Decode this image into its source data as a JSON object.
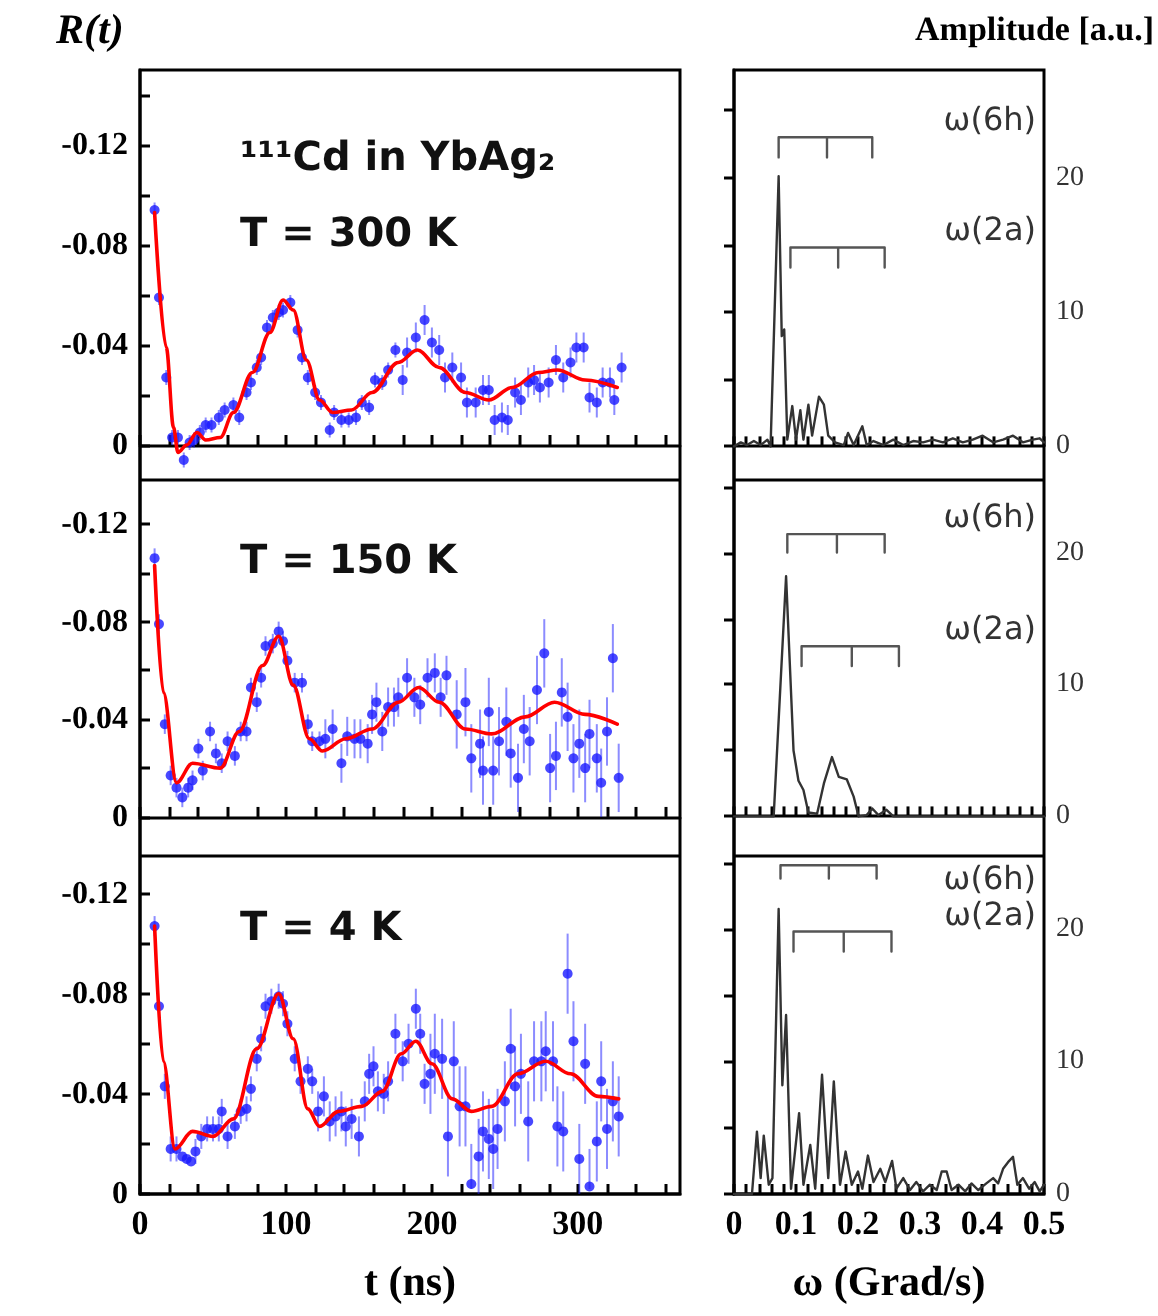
{
  "chart_data": [
    {
      "type": "scatter",
      "ylabel": "R(t)",
      "annotations": [
        "¹¹¹Cd in YbAg₂",
        "T = 300 K"
      ],
      "tick_labels": "y",
      "xlim": [
        0,
        370
      ],
      "xticks": [
        0,
        {
          "value": 20,
          "label": null
        },
        {
          "value": 40,
          "label": null
        },
        {
          "value": 60,
          "label": null
        },
        {
          "value": 80,
          "label": null
        },
        100,
        {
          "value": 120,
          "label": null
        },
        {
          "value": 140,
          "label": null
        },
        {
          "value": 160,
          "label": null
        },
        {
          "value": 180,
          "label": null
        },
        200,
        {
          "value": 220,
          "label": null
        },
        {
          "value": 240,
          "label": null
        },
        {
          "value": 260,
          "label": null
        },
        {
          "value": 280,
          "label": null
        },
        300,
        {
          "value": 320,
          "label": null
        },
        {
          "value": 340,
          "label": null
        },
        {
          "value": 360,
          "label": null
        }
      ],
      "ylim": [
        0.014,
        -0.15
      ],
      "yticks": [
        {
          "value": -0.14,
          "label": null
        },
        -0.12,
        {
          "value": -0.1,
          "label": null
        },
        -0.08,
        {
          "value": -0.06,
          "label": null
        },
        -0.04,
        {
          "value": -0.02,
          "label": null
        },
        0
      ],
      "series": [
        {
          "type": "scatter",
          "marker": "circle",
          "color": "#1a1aff",
          "x": [
            10,
            13,
            18,
            22,
            26,
            30,
            34,
            37,
            41,
            45,
            49,
            54,
            58,
            64,
            68,
            73,
            76,
            80,
            83,
            87,
            91,
            95,
            98,
            103,
            108,
            111,
            115,
            120,
            124,
            130,
            133,
            138,
            143,
            148,
            152,
            157,
            161,
            166,
            170,
            175,
            180,
            183,
            189,
            195,
            200,
            205,
            209,
            214,
            220,
            224,
            230,
            235,
            239,
            243,
            248,
            252,
            257,
            261,
            266,
            270,
            274,
            280,
            285,
            290,
            295,
            299,
            304,
            308,
            313,
            317,
            322,
            325,
            330
          ],
          "values": [
            -0.094,
            -0.059,
            -0.027,
            -0.003,
            -0.003,
            0.006,
            -0.001,
            -0.002,
            -0.005,
            -0.008,
            -0.008,
            -0.011,
            -0.014,
            -0.016,
            -0.011,
            -0.021,
            -0.025,
            -0.031,
            -0.035,
            -0.047,
            -0.051,
            -0.053,
            -0.054,
            -0.057,
            -0.046,
            -0.035,
            -0.027,
            -0.021,
            -0.017,
            -0.006,
            -0.013,
            -0.01,
            -0.01,
            -0.011,
            -0.017,
            -0.015,
            -0.026,
            -0.025,
            -0.03,
            -0.038,
            -0.026,
            -0.037,
            -0.043,
            -0.05,
            -0.041,
            -0.038,
            -0.027,
            -0.031,
            -0.027,
            -0.017,
            -0.017,
            -0.022,
            -0.022,
            -0.01,
            -0.011,
            -0.01,
            -0.021,
            -0.018,
            -0.025,
            -0.026,
            -0.023,
            -0.025,
            -0.034,
            -0.027,
            -0.033,
            -0.039,
            -0.039,
            -0.019,
            -0.017,
            -0.025,
            -0.025,
            -0.018,
            -0.031
          ],
          "errors": [
            0.003,
            0.003,
            0.003,
            0.003,
            0.003,
            0.003,
            0.003,
            0.003,
            0.003,
            0.003,
            0.003,
            0.003,
            0.003,
            0.003,
            0.003,
            0.003,
            0.003,
            0.003,
            0.003,
            0.003,
            0.003,
            0.003,
            0.003,
            0.003,
            0.003,
            0.003,
            0.003,
            0.003,
            0.003,
            0.003,
            0.003,
            0.003,
            0.003,
            0.003,
            0.003,
            0.003,
            0.003,
            0.003,
            0.003,
            0.003,
            0.006,
            0.006,
            0.006,
            0.006,
            0.006,
            0.006,
            0.006,
            0.006,
            0.006,
            0.006,
            0.006,
            0.006,
            0.006,
            0.006,
            0.006,
            0.006,
            0.006,
            0.006,
            0.006,
            0.006,
            0.006,
            0.006,
            0.006,
            0.006,
            0.006,
            0.006,
            0.006,
            0.006,
            0.006,
            0.006,
            0.006,
            0.006,
            0.006
          ]
        },
        {
          "type": "line",
          "marker": "none",
          "color": "#ff0000",
          "x": [
            10,
            18,
            23,
            26,
            32,
            39,
            45,
            55,
            64,
            77,
            89,
            98,
            105,
            114,
            123,
            132,
            145,
            159,
            177,
            190,
            205,
            223,
            239,
            255,
            273,
            286,
            305,
            327
          ],
          "values": [
            -0.093,
            -0.039,
            -0.007,
            0.003,
            0,
            -0.005,
            -0.002,
            -0.003,
            -0.013,
            -0.029,
            -0.045,
            -0.058,
            -0.054,
            -0.034,
            -0.018,
            -0.013,
            -0.014,
            -0.021,
            -0.033,
            -0.038,
            -0.031,
            -0.021,
            -0.018,
            -0.023,
            -0.029,
            -0.03,
            -0.026,
            -0.023
          ]
        }
      ]
    },
    {
      "type": "line",
      "y2label": "Amplitude [a.u.]",
      "tick_labels": "y",
      "xlim": [
        0,
        0.5
      ],
      "xticks": [
        0,
        {
          "value": 0.02,
          "label": null
        },
        {
          "value": 0.04,
          "label": null
        },
        {
          "value": 0.06,
          "label": null
        },
        {
          "value": 0.08,
          "label": null
        },
        0.1,
        {
          "value": 0.12,
          "label": null
        },
        {
          "value": 0.14,
          "label": null
        },
        {
          "value": 0.16,
          "label": null
        },
        {
          "value": 0.18,
          "label": null
        },
        0.2,
        {
          "value": 0.22,
          "label": null
        },
        {
          "value": 0.24,
          "label": null
        },
        {
          "value": 0.26,
          "label": null
        },
        {
          "value": 0.28,
          "label": null
        },
        0.3,
        {
          "value": 0.32,
          "label": null
        },
        {
          "value": 0.34,
          "label": null
        },
        {
          "value": 0.36,
          "label": null
        },
        {
          "value": 0.38,
          "label": null
        },
        0.4,
        {
          "value": 0.42,
          "label": null
        },
        {
          "value": 0.44,
          "label": null
        },
        {
          "value": 0.46,
          "label": null
        },
        {
          "value": 0.48,
          "label": null
        },
        0.5
      ],
      "y2lim": [
        -2.5,
        28
      ],
      "y2ticks": [
        0,
        {
          "value": 5,
          "label": null
        },
        10,
        {
          "value": 15,
          "label": null
        },
        20,
        {
          "value": 25,
          "label": null
        }
      ],
      "series": [
        {
          "axis": "y2",
          "color": "#333333",
          "x": [
            0,
            0.011,
            0.021,
            0.032,
            0.043,
            0.054,
            0.059,
            0.072,
            0.077,
            0.081,
            0.086,
            0.094,
            0.1,
            0.107,
            0.112,
            0.12,
            0.126,
            0.137,
            0.145,
            0.152,
            0.163,
            0.177,
            0.184,
            0.193,
            0.207,
            0.214,
            0.225,
            0.241,
            0.257,
            0.273,
            0.289,
            0.305,
            0.321,
            0.337,
            0.353,
            0.369,
            0.385,
            0.401,
            0.418,
            0.434,
            0.45,
            0.466,
            0.482,
            0.493,
            0.5
          ],
          "values": [
            0,
            0.3,
            0.1,
            0.4,
            0.1,
            0.5,
            0,
            20.1,
            8.2,
            8.7,
            0.5,
            3,
            0.5,
            2.7,
            0.5,
            3.1,
            0.8,
            3.7,
            3.1,
            0.8,
            0.3,
            0.1,
            1,
            0.1,
            1.5,
            0.1,
            0.4,
            0.1,
            0.5,
            0.1,
            0.4,
            0.3,
            0.5,
            0.3,
            0.6,
            0.3,
            0.5,
            0.8,
            0.3,
            0.5,
            0.8,
            0.3,
            0.5,
            0.6,
            0.3
          ]
        },
        {
          "axis": "y2",
          "name": "ω(6h)",
          "color": "#555555",
          "x": [
            0.072,
            0.072,
            0.15,
            0.15,
            0.15,
            0.223,
            0.223
          ],
          "values": [
            21.5,
            23,
            23,
            21.5,
            23,
            23,
            21.5
          ]
        },
        {
          "axis": "y2",
          "name": "ω(2a)",
          "color": "#555555",
          "x": [
            0.091,
            0.091,
            0.168,
            0.168,
            0.168,
            0.243,
            0.243
          ],
          "values": [
            13.3,
            14.8,
            14.8,
            13.3,
            14.8,
            14.8,
            13.3
          ]
        }
      ]
    },
    {
      "type": "scatter",
      "annotations": [
        "T = 150 K"
      ],
      "tick_labels": "y",
      "xlim": [
        0,
        370
      ],
      "xticks": [
        0,
        {
          "value": 20,
          "label": null
        },
        {
          "value": 40,
          "label": null
        },
        {
          "value": 60,
          "label": null
        },
        {
          "value": 80,
          "label": null
        },
        100,
        {
          "value": 120,
          "label": null
        },
        {
          "value": 140,
          "label": null
        },
        {
          "value": 160,
          "label": null
        },
        {
          "value": 180,
          "label": null
        },
        200,
        {
          "value": 220,
          "label": null
        },
        {
          "value": 240,
          "label": null
        },
        {
          "value": 260,
          "label": null
        },
        {
          "value": 280,
          "label": null
        },
        300,
        {
          "value": 320,
          "label": null
        },
        {
          "value": 340,
          "label": null
        },
        {
          "value": 360,
          "label": null
        }
      ],
      "ylim": [
        0.016,
        -0.138
      ],
      "yticks": [
        -0.12,
        {
          "value": -0.1,
          "label": null
        },
        -0.08,
        {
          "value": -0.06,
          "label": null
        },
        -0.04,
        {
          "value": -0.02,
          "label": null
        },
        0
      ],
      "series": [
        {
          "type": "scatter",
          "marker": "circle",
          "color": "#1a1aff",
          "x": [
            10,
            13,
            17,
            21,
            25,
            29,
            33,
            36,
            40,
            43,
            48,
            52,
            56,
            60,
            65,
            69,
            73,
            76,
            80,
            83,
            86,
            91,
            95,
            98,
            101,
            106,
            111,
            115,
            118,
            123,
            127,
            132,
            138,
            142,
            147,
            151,
            156,
            159,
            162,
            166,
            170,
            174,
            177,
            183,
            188,
            192,
            197,
            202,
            206,
            210,
            217,
            223,
            227,
            233,
            235,
            239,
            242,
            246,
            251,
            254,
            259,
            263,
            267,
            272,
            277,
            281,
            285,
            289,
            293,
            297,
            301,
            305,
            308,
            313,
            316,
            320,
            324,
            328
          ],
          "values": [
            -0.106,
            -0.079,
            -0.038,
            -0.017,
            -0.012,
            -0.008,
            -0.012,
            -0.015,
            -0.028,
            -0.019,
            -0.035,
            -0.026,
            -0.022,
            -0.031,
            -0.025,
            -0.035,
            -0.035,
            -0.053,
            -0.047,
            -0.057,
            -0.07,
            -0.071,
            -0.076,
            -0.072,
            -0.064,
            -0.055,
            -0.055,
            -0.038,
            -0.031,
            -0.031,
            -0.032,
            -0.036,
            -0.022,
            -0.033,
            -0.032,
            -0.032,
            -0.03,
            -0.042,
            -0.047,
            -0.035,
            -0.045,
            -0.045,
            -0.049,
            -0.057,
            -0.049,
            -0.046,
            -0.057,
            -0.059,
            -0.049,
            -0.058,
            -0.042,
            -0.047,
            -0.024,
            -0.03,
            -0.019,
            -0.043,
            -0.019,
            -0.031,
            -0.039,
            -0.026,
            -0.016,
            -0.036,
            -0.031,
            -0.052,
            -0.067,
            -0.02,
            -0.025,
            -0.051,
            -0.041,
            -0.024,
            -0.03,
            -0.02,
            -0.034,
            -0.024,
            -0.014,
            -0.035,
            -0.065,
            -0.016
          ],
          "errors": [
            0.004,
            0.004,
            0.004,
            0.004,
            0.004,
            0.004,
            0.004,
            0.004,
            0.004,
            0.004,
            0.004,
            0.004,
            0.004,
            0.004,
            0.004,
            0.004,
            0.004,
            0.004,
            0.004,
            0.004,
            0.004,
            0.004,
            0.004,
            0.004,
            0.004,
            0.004,
            0.004,
            0.004,
            0.004,
            0.004,
            0.008,
            0.008,
            0.008,
            0.008,
            0.008,
            0.008,
            0.008,
            0.008,
            0.008,
            0.008,
            0.008,
            0.008,
            0.008,
            0.008,
            0.008,
            0.008,
            0.008,
            0.008,
            0.008,
            0.008,
            0.014,
            0.014,
            0.014,
            0.014,
            0.014,
            0.014,
            0.014,
            0.014,
            0.014,
            0.014,
            0.014,
            0.014,
            0.014,
            0.014,
            0.014,
            0.014,
            0.014,
            0.014,
            0.014,
            0.014,
            0.014,
            0.014,
            0.014,
            0.014,
            0.014,
            0.014,
            0.014,
            0.014
          ]
        },
        {
          "type": "line",
          "marker": "none",
          "color": "#ff0000",
          "x": [
            10,
            16,
            25,
            36,
            55,
            68,
            84,
            95,
            105,
            116,
            125,
            141,
            159,
            177,
            191,
            205,
            223,
            241,
            264,
            284,
            305,
            327
          ],
          "values": [
            -0.103,
            -0.051,
            -0.014,
            -0.022,
            -0.02,
            -0.035,
            -0.062,
            -0.074,
            -0.054,
            -0.032,
            -0.027,
            -0.032,
            -0.036,
            -0.047,
            -0.053,
            -0.047,
            -0.036,
            -0.034,
            -0.041,
            -0.047,
            -0.042,
            -0.038
          ]
        }
      ]
    },
    {
      "type": "line",
      "tick_labels": "y",
      "xlim": [
        0,
        0.5
      ],
      "xticks": [
        0,
        {
          "value": 0.02,
          "label": null
        },
        {
          "value": 0.04,
          "label": null
        },
        {
          "value": 0.06,
          "label": null
        },
        {
          "value": 0.08,
          "label": null
        },
        0.1,
        {
          "value": 0.12,
          "label": null
        },
        {
          "value": 0.14,
          "label": null
        },
        {
          "value": 0.16,
          "label": null
        },
        {
          "value": 0.18,
          "label": null
        },
        0.2,
        {
          "value": 0.22,
          "label": null
        },
        {
          "value": 0.24,
          "label": null
        },
        {
          "value": 0.26,
          "label": null
        },
        {
          "value": 0.28,
          "label": null
        },
        0.3,
        {
          "value": 0.32,
          "label": null
        },
        {
          "value": 0.34,
          "label": null
        },
        {
          "value": 0.36,
          "label": null
        },
        {
          "value": 0.38,
          "label": null
        },
        0.4,
        {
          "value": 0.42,
          "label": null
        },
        {
          "value": 0.44,
          "label": null
        },
        {
          "value": 0.46,
          "label": null
        },
        {
          "value": 0.48,
          "label": null
        },
        0.5
      ],
      "y2lim": [
        -3,
        25.5
      ],
      "y2ticks": [
        0,
        {
          "value": 5,
          "label": null
        },
        10,
        {
          "value": 15,
          "label": null
        },
        20,
        {
          "value": 25,
          "label": null
        }
      ],
      "series": [
        {
          "axis": "y2",
          "color": "#333333",
          "x": [
            0,
            0.064,
            0.084,
            0.096,
            0.104,
            0.112,
            0.12,
            0.134,
            0.145,
            0.158,
            0.169,
            0.182,
            0.193,
            0.201,
            0.214,
            0.223,
            0.233,
            0.246,
            0.257,
            0.5
          ],
          "values": [
            0,
            0,
            18.2,
            5,
            2.7,
            2,
            0.3,
            0.2,
            2.5,
            4.5,
            3,
            2.8,
            1.5,
            0,
            0.1,
            0.6,
            0.1,
            0.5,
            0,
            0
          ]
        },
        {
          "axis": "y2",
          "name": "ω(6h)",
          "color": "#555555",
          "x": [
            0.086,
            0.086,
            0.166,
            0.166,
            0.166,
            0.243,
            0.243
          ],
          "values": [
            20,
            21.4,
            21.4,
            20,
            21.4,
            21.4,
            20
          ]
        },
        {
          "axis": "y2",
          "name": "ω(2a)",
          "color": "#555555",
          "x": [
            0.109,
            0.109,
            0.19,
            0.19,
            0.19,
            0.266,
            0.266
          ],
          "values": [
            11.4,
            12.9,
            12.9,
            11.4,
            12.9,
            12.9,
            11.4
          ]
        }
      ]
    },
    {
      "type": "scatter",
      "xlabel": "t (ns)",
      "annotations": [
        "T = 4 K"
      ],
      "xlim": [
        0,
        370
      ],
      "xticks": [
        0,
        {
          "value": 20,
          "label": null
        },
        {
          "value": 40,
          "label": null
        },
        {
          "value": 60,
          "label": null
        },
        {
          "value": 80,
          "label": null
        },
        100,
        {
          "value": 120,
          "label": null
        },
        {
          "value": 140,
          "label": null
        },
        {
          "value": 160,
          "label": null
        },
        {
          "value": 180,
          "label": null
        },
        200,
        {
          "value": 220,
          "label": null
        },
        {
          "value": 240,
          "label": null
        },
        {
          "value": 260,
          "label": null
        },
        {
          "value": 280,
          "label": null
        },
        300,
        {
          "value": 320,
          "label": null
        },
        {
          "value": 340,
          "label": null
        },
        {
          "value": 360,
          "label": null
        }
      ],
      "ylim": [
        0,
        -0.135
      ],
      "yticks": [
        -0.12,
        {
          "value": -0.1,
          "label": null
        },
        -0.08,
        {
          "value": -0.06,
          "label": null
        },
        -0.04,
        {
          "value": -0.02,
          "label": null
        },
        0
      ],
      "series": [
        {
          "type": "scatter",
          "marker": "circle",
          "color": "#1a1aff",
          "x": [
            10,
            13,
            17,
            21,
            25,
            29,
            32,
            35,
            38,
            42,
            46,
            50,
            54,
            56,
            60,
            65,
            69,
            73,
            76,
            80,
            83,
            86,
            90,
            95,
            98,
            101,
            106,
            110,
            115,
            118,
            122,
            126,
            130,
            134,
            138,
            141,
            145,
            150,
            154,
            157,
            160,
            163,
            167,
            170,
            175,
            180,
            184,
            189,
            192,
            195,
            199,
            202,
            207,
            211,
            215,
            219,
            223,
            227,
            232,
            235,
            239,
            242,
            245,
            250,
            254,
            257,
            261,
            266,
            270,
            275,
            278,
            283,
            286,
            290,
            293,
            297,
            301,
            305,
            308,
            313,
            316,
            320,
            324,
            328
          ],
          "values": [
            -0.107,
            -0.075,
            -0.043,
            -0.018,
            -0.018,
            -0.015,
            -0.014,
            -0.013,
            -0.017,
            -0.023,
            -0.026,
            -0.026,
            -0.026,
            -0.033,
            -0.023,
            -0.027,
            -0.033,
            -0.034,
            -0.042,
            -0.054,
            -0.062,
            -0.075,
            -0.077,
            -0.079,
            -0.076,
            -0.068,
            -0.054,
            -0.045,
            -0.05,
            -0.045,
            -0.033,
            -0.039,
            -0.029,
            -0.031,
            -0.033,
            -0.027,
            -0.03,
            -0.023,
            -0.037,
            -0.048,
            -0.051,
            -0.041,
            -0.04,
            -0.045,
            -0.064,
            -0.053,
            -0.06,
            -0.074,
            -0.064,
            -0.044,
            -0.048,
            -0.056,
            -0.054,
            -0.023,
            -0.053,
            -0.035,
            -0.035,
            -0.004,
            -0.015,
            -0.025,
            -0.022,
            -0.018,
            -0.026,
            -0.037,
            -0.058,
            -0.043,
            -0.048,
            -0.029,
            -0.053,
            -0.053,
            -0.057,
            -0.053,
            -0.027,
            -0.025,
            -0.088,
            -0.061,
            -0.014,
            -0.052,
            -0.003,
            -0.021,
            -0.045,
            -0.026,
            -0.037,
            -0.031
          ],
          "errors": [
            0.004,
            null,
            0.005,
            0.005,
            0.005,
            null,
            null,
            null,
            0.005,
            0.005,
            0.005,
            0.005,
            0.005,
            0.005,
            0.005,
            0.005,
            0.005,
            0.005,
            0.005,
            0.005,
            0.005,
            0.005,
            0.005,
            0.005,
            0.005,
            0.005,
            0.005,
            0.005,
            0.005,
            0.005,
            0.008,
            0.008,
            0.008,
            0.008,
            0.008,
            0.008,
            0.008,
            0.008,
            0.008,
            0.008,
            0.008,
            0.008,
            0.008,
            0.008,
            0.008,
            0.008,
            0.008,
            0.008,
            0.008,
            0.008,
            0.016,
            0.016,
            0.016,
            0.016,
            0.016,
            0.016,
            0.016,
            [
              -0.02,
              -0.002
            ],
            0.015,
            0.016,
            0.016,
            0.016,
            0.016,
            0.016,
            0.016,
            0.016,
            0.016,
            0.016,
            0.016,
            0.016,
            0.016,
            0.016,
            0.016,
            0.016,
            0.016,
            0.016,
            0.014,
            0.016,
            [
              -0.018,
              -0.002
            ],
            0.016,
            0.016,
            0.016,
            0.016,
            0.016
          ]
        },
        {
          "type": "line",
          "marker": "none",
          "color": "#ff0000",
          "x": [
            10,
            16,
            24,
            36,
            50,
            64,
            80,
            95,
            105,
            115,
            123,
            136,
            152,
            166,
            179,
            189,
            200,
            214,
            227,
            241,
            259,
            278,
            295,
            314,
            328
          ],
          "values": [
            -0.107,
            -0.053,
            -0.018,
            -0.025,
            -0.023,
            -0.03,
            -0.058,
            -0.08,
            -0.062,
            -0.034,
            -0.027,
            -0.033,
            -0.035,
            -0.041,
            -0.056,
            -0.061,
            -0.052,
            -0.038,
            -0.033,
            -0.035,
            -0.048,
            -0.053,
            -0.048,
            -0.039,
            -0.038
          ]
        }
      ]
    },
    {
      "type": "line",
      "xlabel": "ω (Grad/s)",
      "xlim": [
        0,
        0.5
      ],
      "xticks": [
        0,
        {
          "value": 0.02,
          "label": null
        },
        {
          "value": 0.04,
          "label": null
        },
        {
          "value": 0.06,
          "label": null
        },
        {
          "value": 0.08,
          "label": null
        },
        0.1,
        {
          "value": 0.12,
          "label": null
        },
        {
          "value": 0.14,
          "label": null
        },
        {
          "value": 0.16,
          "label": null
        },
        {
          "value": 0.18,
          "label": null
        },
        0.2,
        {
          "value": 0.22,
          "label": null
        },
        {
          "value": 0.24,
          "label": null
        },
        {
          "value": 0.26,
          "label": null
        },
        {
          "value": 0.28,
          "label": null
        },
        0.3,
        {
          "value": 0.32,
          "label": null
        },
        {
          "value": 0.34,
          "label": null
        },
        {
          "value": 0.36,
          "label": null
        },
        {
          "value": 0.38,
          "label": null
        },
        0.4,
        {
          "value": 0.42,
          "label": null
        },
        {
          "value": 0.44,
          "label": null
        },
        {
          "value": 0.46,
          "label": null
        },
        {
          "value": 0.48,
          "label": null
        },
        0.5
      ],
      "y2lim": [
        0,
        25.5
      ],
      "y2ticks": [
        0,
        {
          "value": 5,
          "label": null
        },
        10,
        {
          "value": 15,
          "label": null
        },
        20,
        {
          "value": 25,
          "label": null
        }
      ],
      "series": [
        {
          "axis": "y2",
          "color": "#333333",
          "x": [
            0,
            0.029,
            0.037,
            0.043,
            0.048,
            0.056,
            0.062,
            0.072,
            0.078,
            0.084,
            0.092,
            0.105,
            0.112,
            0.123,
            0.131,
            0.142,
            0.152,
            0.161,
            0.171,
            0.18,
            0.19,
            0.2,
            0.207,
            0.216,
            0.225,
            0.236,
            0.244,
            0.255,
            0.262,
            0.273,
            0.284,
            0.294,
            0.305,
            0.316,
            0.327,
            0.335,
            0.343,
            0.351,
            0.362,
            0.373,
            0.383,
            0.394,
            0.407,
            0.418,
            0.426,
            0.434,
            0.442,
            0.45,
            0.457,
            0.466,
            0.476,
            0.485,
            0.493,
            0.5
          ],
          "values": [
            0,
            0,
            4.7,
            1.2,
            4.4,
            0.7,
            1.2,
            21.5,
            8.2,
            13.5,
            0.4,
            6.1,
            0.7,
            3.7,
            0.4,
            9,
            1.2,
            8.5,
            0.7,
            3.2,
            0.7,
            1.7,
            0.4,
            2.9,
            0.9,
            1.9,
            0.9,
            2.5,
            0.4,
            1.2,
            0.3,
            0.9,
            0.2,
            0.7,
            0.3,
            1.7,
            1.7,
            0.3,
            0.7,
            0.2,
            0.8,
            0.3,
            0.8,
            1.2,
            0.8,
            1.9,
            2.4,
            2.8,
            0.7,
            1.2,
            0.4,
            0.9,
            0.2,
            0.7
          ]
        },
        {
          "axis": "y2",
          "name": "ω(6h)",
          "color": "#555555",
          "x": [
            0.075,
            0.075,
            0.153,
            0.153,
            0.153,
            0.23,
            0.23
          ],
          "values": [
            23.8,
            24.8,
            24.8,
            23.8,
            24.8,
            24.8,
            23.8
          ]
        },
        {
          "axis": "y2",
          "name": "ω(2a)",
          "color": "#555555",
          "x": [
            0.096,
            0.096,
            0.177,
            0.177,
            0.177,
            0.254,
            0.254
          ],
          "values": [
            18.3,
            19.8,
            19.8,
            18.3,
            19.8,
            19.8,
            18.3
          ]
        }
      ]
    }
  ]
}
